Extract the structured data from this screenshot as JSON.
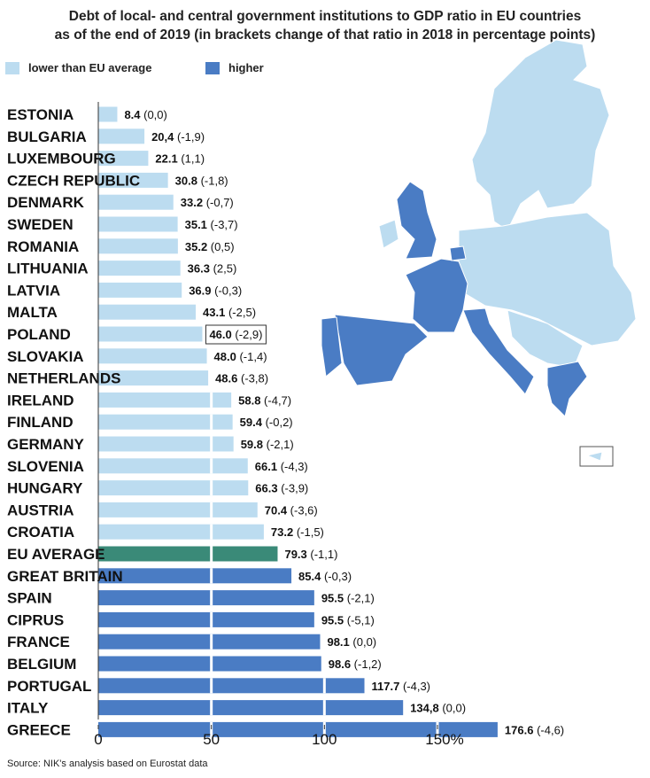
{
  "title_line1": "Debt of local- and central government institutions to GDP ratio in EU countries",
  "title_line2": "as of the end of 2019 (in brackets change of that ratio in 2018 in percentage points)",
  "legend": [
    {
      "label": "lower than EU average",
      "color": "#bcdcf0"
    },
    {
      "label": "higher",
      "color": "#4a7cc4"
    }
  ],
  "source": "Source: NIK's analysis based on Eurostat data",
  "colors": {
    "lower": "#bcdcf0",
    "higher": "#4a7cc4",
    "average": "#3a8a78"
  },
  "chart_data": {
    "type": "bar",
    "orientation": "horizontal",
    "title": "Debt of local- and central government institutions to GDP ratio in EU countries as of the end of 2019 (in brackets change of that ratio in 2018 in percentage points)",
    "xlim": [
      0,
      180
    ],
    "xticks": [
      "0",
      "50",
      "100",
      "150%"
    ],
    "xtick_values": [
      0,
      50,
      100,
      150
    ],
    "highlighted": "POLAND",
    "rows": [
      {
        "country": "ESTONIA",
        "value": 8.4,
        "value_label": "8.4",
        "change": "(0,0)",
        "group": "lower"
      },
      {
        "country": "BULGARIA",
        "value": 20.4,
        "value_label": "20,4",
        "change": "(-1,9)",
        "group": "lower"
      },
      {
        "country": "LUXEMBOURG",
        "value": 22.1,
        "value_label": "22.1",
        "change": "(1,1)",
        "group": "lower"
      },
      {
        "country": "CZECH  REPUBLIC",
        "value": 30.8,
        "value_label": "30.8",
        "change": "(-1,8)",
        "group": "lower"
      },
      {
        "country": "DENMARK",
        "value": 33.2,
        "value_label": "33.2",
        "change": "(-0,7)",
        "group": "lower"
      },
      {
        "country": "SWEDEN",
        "value": 35.1,
        "value_label": "35.1",
        "change": "(-3,7)",
        "group": "lower"
      },
      {
        "country": "ROMANIA",
        "value": 35.2,
        "value_label": "35.2",
        "change": "(0,5)",
        "group": "lower"
      },
      {
        "country": "LITHUANIA",
        "value": 36.3,
        "value_label": "36.3",
        "change": "(2,5)",
        "group": "lower"
      },
      {
        "country": "LATVIA",
        "value": 36.9,
        "value_label": "36.9",
        "change": "(-0,3)",
        "group": "lower"
      },
      {
        "country": "MALTA",
        "value": 43.1,
        "value_label": "43.1",
        "change": "(-2,5)",
        "group": "lower"
      },
      {
        "country": "POLAND",
        "value": 46.0,
        "value_label": "46.0",
        "change": "(-2,9)",
        "group": "lower"
      },
      {
        "country": "SLOVAKIA",
        "value": 48.0,
        "value_label": "48.0",
        "change": "(-1,4)",
        "group": "lower"
      },
      {
        "country": "NETHERLANDS",
        "value": 48.6,
        "value_label": "48.6",
        "change": "(-3,8)",
        "group": "lower"
      },
      {
        "country": "IRELAND",
        "value": 58.8,
        "value_label": "58.8",
        "change": "(-4,7)",
        "group": "lower"
      },
      {
        "country": "FINLAND",
        "value": 59.4,
        "value_label": "59.4",
        "change": "(-0,2)",
        "group": "lower"
      },
      {
        "country": "GERMANY",
        "value": 59.8,
        "value_label": "59.8",
        "change": "(-2,1)",
        "group": "lower"
      },
      {
        "country": "SLOVENIA",
        "value": 66.1,
        "value_label": "66.1",
        "change": "(-4,3)",
        "group": "lower"
      },
      {
        "country": "HUNGARY",
        "value": 66.3,
        "value_label": "66.3",
        "change": "(-3,9)",
        "group": "lower"
      },
      {
        "country": "AUSTRIA",
        "value": 70.4,
        "value_label": "70.4",
        "change": "(-3,6)",
        "group": "lower"
      },
      {
        "country": "CROATIA",
        "value": 73.2,
        "value_label": "73.2",
        "change": "(-1,5)",
        "group": "lower"
      },
      {
        "country": "EU AVERAGE",
        "value": 79.3,
        "value_label": "79.3",
        "change": "(-1,1)",
        "group": "average"
      },
      {
        "country": "GREAT BRITAIN",
        "value": 85.4,
        "value_label": "85.4",
        "change": "(-0,3)",
        "group": "higher"
      },
      {
        "country": "SPAIN",
        "value": 95.5,
        "value_label": "95.5",
        "change": "(-2,1)",
        "group": "higher"
      },
      {
        "country": "CIPRUS",
        "value": 95.5,
        "value_label": "95.5",
        "change": "(-5,1)",
        "group": "higher"
      },
      {
        "country": "FRANCE",
        "value": 98.1,
        "value_label": "98.1",
        "change": "(0,0)",
        "group": "higher"
      },
      {
        "country": "BELGIUM",
        "value": 98.6,
        "value_label": "98.6",
        "change": "(-1,2)",
        "group": "higher"
      },
      {
        "country": "PORTUGAL",
        "value": 117.7,
        "value_label": "117.7",
        "change": "(-4,3)",
        "group": "higher"
      },
      {
        "country": "ITALY",
        "value": 134.8,
        "value_label": "134,8",
        "change": "(0,0)",
        "group": "higher"
      },
      {
        "country": "GREECE",
        "value": 176.6,
        "value_label": "176.6",
        "change": "(-4,6)",
        "group": "higher"
      }
    ]
  }
}
